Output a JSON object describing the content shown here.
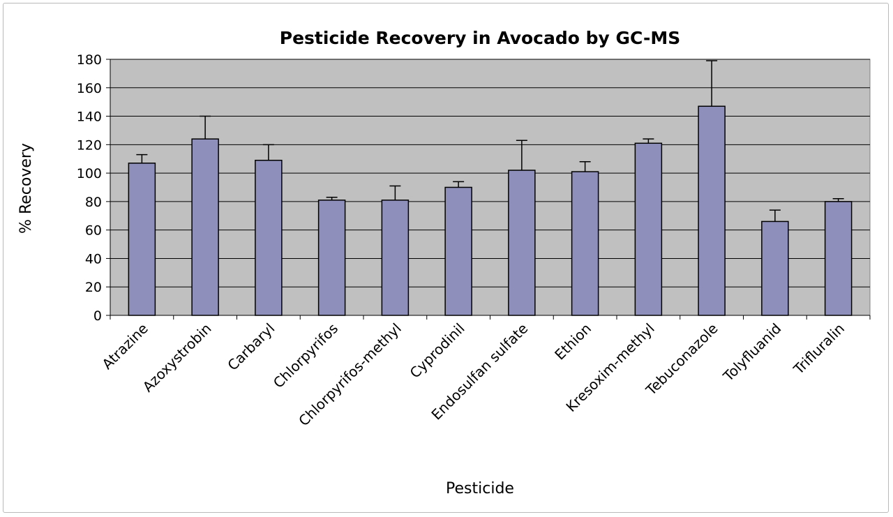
{
  "chart_data": {
    "type": "bar",
    "title": "Pesticide Recovery in Avocado by GC-MS",
    "xlabel": "Pesticide",
    "ylabel": "% Recovery",
    "ylim": [
      0,
      180
    ],
    "yticks": [
      0,
      20,
      40,
      60,
      80,
      100,
      120,
      140,
      160,
      180
    ],
    "categories": [
      "Atrazine",
      "Azoxystrobin",
      "Carbaryl",
      "Chlorpyrifos",
      "Chlorpyrifos-methyl",
      "Cyprodinil",
      "Endosulfan sulfate",
      "Ethion",
      "Kresoxim-methyl",
      "Tebuconazole",
      "Tolyfluanid",
      "Trifluralin"
    ],
    "values": [
      107,
      124,
      109,
      81,
      81,
      90,
      102,
      101,
      121,
      147,
      66,
      80
    ],
    "error_upper": [
      113,
      140,
      120,
      83,
      91,
      94,
      123,
      108,
      124,
      179,
      74,
      82
    ],
    "grid": true,
    "legend": "none",
    "colors": {
      "plot_background": "#c0c0c0",
      "bar_fill": "#8f8fbc",
      "bar_stroke": "#000000",
      "grid": "#000000"
    }
  }
}
